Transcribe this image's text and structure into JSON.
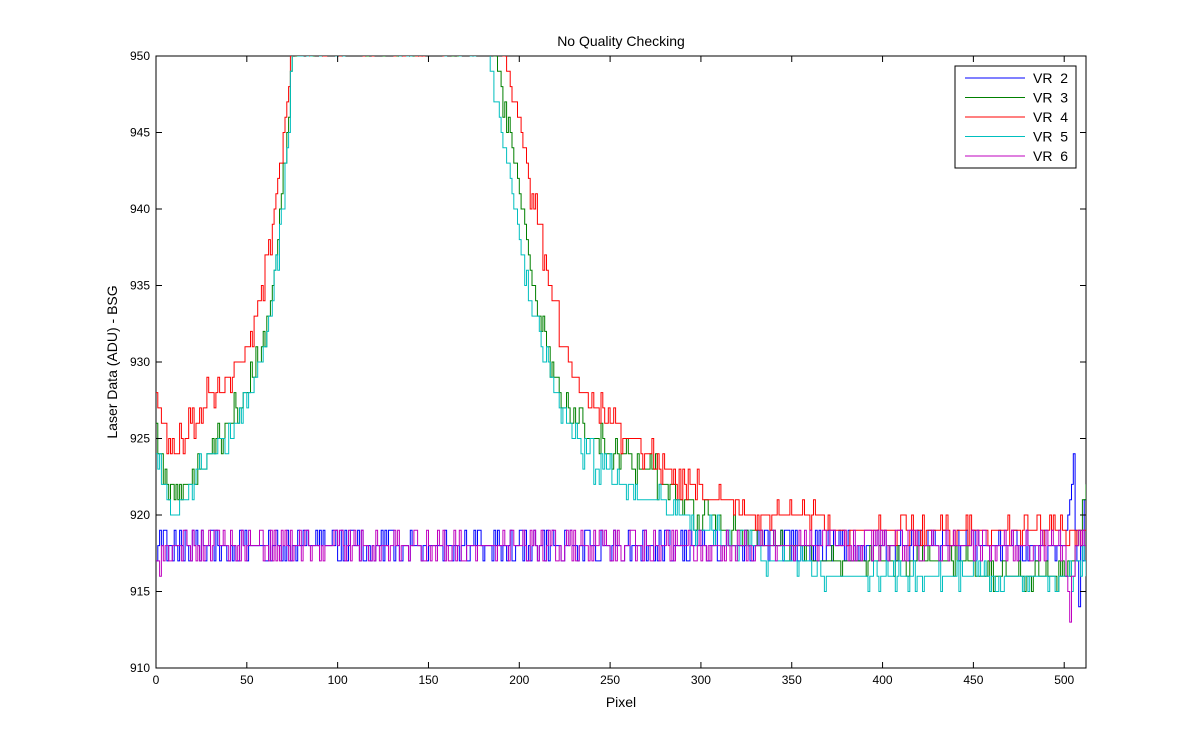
{
  "chart_data": {
    "type": "line",
    "title": "No Quality Checking",
    "xlabel": "Pixel",
    "ylabel": "Laser Data (ADU) - BSG",
    "xlim": [
      0,
      512
    ],
    "ylim": [
      910,
      950
    ],
    "xticks": [
      0,
      50,
      100,
      150,
      200,
      250,
      300,
      350,
      400,
      450,
      500
    ],
    "yticks": [
      910,
      915,
      920,
      925,
      930,
      935,
      940,
      945,
      950
    ],
    "grid": false,
    "legend_position": "top-right",
    "series": [
      {
        "name": "VR  2",
        "color": "#0000ff",
        "style": "noisy-baseline",
        "x": [
          0,
          3,
          6,
          50,
          100,
          150,
          200,
          250,
          280,
          300,
          350,
          400,
          450,
          500,
          505,
          508,
          512
        ],
        "values": [
          917,
          919,
          918,
          918,
          918,
          918,
          918,
          918,
          918,
          918,
          918,
          918,
          918,
          918,
          923,
          915,
          921
        ]
      },
      {
        "name": "VR  3",
        "color": "#008000",
        "style": "peaked",
        "x": [
          0,
          5,
          10,
          20,
          30,
          40,
          50,
          55,
          60,
          65,
          70,
          73,
          75,
          185,
          190,
          195,
          200,
          205,
          210,
          215,
          220,
          225,
          230,
          240,
          250,
          260,
          270,
          280,
          290,
          300,
          310,
          320,
          340,
          350,
          360,
          400,
          450,
          500,
          505,
          512
        ],
        "values": [
          925,
          922,
          922,
          922,
          924,
          926,
          928,
          929.5,
          932,
          936,
          942,
          946,
          951,
          951,
          948,
          945,
          941,
          937,
          933,
          931,
          929,
          927,
          926,
          925,
          924,
          923.5,
          923,
          922,
          921,
          920,
          919.5,
          919,
          918,
          918,
          917.5,
          917,
          916.5,
          916,
          917,
          922
        ]
      },
      {
        "name": "VR  4",
        "color": "#ff0000",
        "style": "peaked",
        "x": [
          0,
          5,
          10,
          15,
          20,
          25,
          30,
          35,
          40,
          50,
          55,
          60,
          65,
          70,
          73,
          75,
          190,
          195,
          200,
          205,
          210,
          215,
          220,
          225,
          230,
          240,
          250,
          260,
          270,
          280,
          290,
          300,
          310,
          320,
          330,
          350,
          370,
          400,
          450,
          500,
          512
        ],
        "values": [
          928,
          925,
          924,
          925,
          926,
          927,
          928,
          928,
          929,
          931,
          933,
          936,
          940,
          945,
          948,
          951,
          951,
          948,
          946,
          942,
          939,
          936,
          933,
          931,
          929,
          927.5,
          926,
          925,
          924,
          923,
          922,
          921.5,
          921,
          920.5,
          920,
          920,
          919.5,
          919,
          919,
          919,
          919
        ]
      },
      {
        "name": "VR  5",
        "color": "#00bfbf",
        "style": "peaked",
        "x": [
          0,
          5,
          10,
          20,
          30,
          40,
          50,
          55,
          60,
          65,
          70,
          73,
          75,
          183,
          185,
          190,
          195,
          200,
          205,
          210,
          215,
          220,
          225,
          230,
          240,
          250,
          260,
          270,
          280,
          290,
          300,
          310,
          320,
          340,
          360,
          400,
          450,
          500,
          512
        ],
        "values": [
          924,
          921,
          920,
          922,
          924,
          925,
          927,
          928.5,
          931,
          935,
          941,
          945,
          951,
          951,
          949,
          945,
          942,
          938,
          935,
          932,
          930,
          928,
          926.5,
          925,
          923.5,
          922.5,
          922,
          921,
          920.5,
          920,
          919,
          918.5,
          918,
          917,
          916.5,
          916,
          916,
          916,
          917
        ]
      },
      {
        "name": "VR  6",
        "color": "#bf00bf",
        "style": "noisy-baseline",
        "x": [
          0,
          2,
          4,
          8,
          50,
          100,
          150,
          200,
          250,
          283,
          285,
          300,
          350,
          400,
          450,
          500,
          503,
          505,
          508,
          512
        ],
        "values": [
          917,
          916,
          918,
          918,
          918,
          918,
          918,
          918,
          918,
          918,
          918,
          918,
          918,
          918,
          918,
          918,
          913,
          916,
          919,
          918
        ]
      }
    ]
  }
}
